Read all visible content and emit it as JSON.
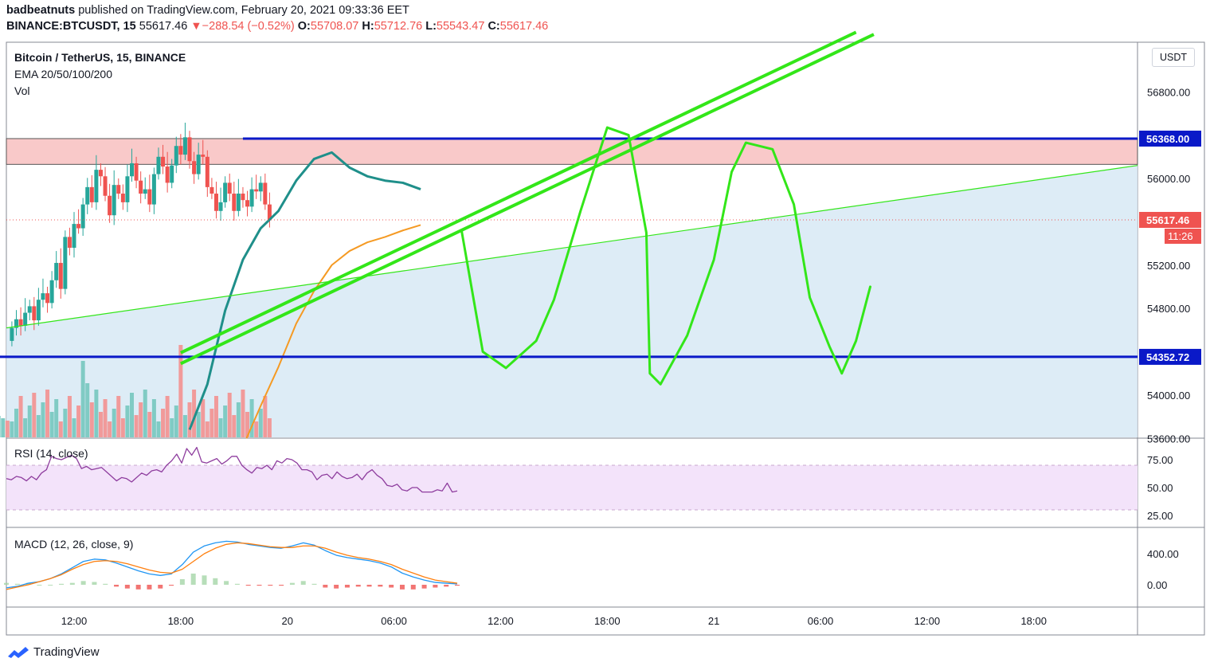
{
  "header": {
    "author": "badbeatnuts",
    "published_text": "published on TradingView.com, February 20, 2021 09:33:36 EET",
    "symbol": "BINANCE:BTCUSDT, 15",
    "last": "55617.46",
    "change_arrow": "▼",
    "change": "−288.54 (−0.52%)",
    "o_label": "O:",
    "o_value": "55708.07",
    "h_label": "H:",
    "h_value": "55712.76",
    "l_label": "L:",
    "l_value": "55543.47",
    "c_label": "C:",
    "c_value": "55617.46"
  },
  "legend": {
    "title": "Bitcoin / TetherUS, 15, BINANCE",
    "ema": "EMA 20/50/100/200",
    "vol": "Vol",
    "rsi": "RSI (14, close)",
    "macd": "MACD (12, 26, close, 9)"
  },
  "unit_badge": "USDT",
  "price_tags": {
    "resistance": "56368.00",
    "last": "55617.46",
    "countdown": "11:26",
    "support": "54352.72"
  },
  "footer": {
    "brand": "TradingView"
  },
  "colors": {
    "up": "#26a69a",
    "down": "#ef5350",
    "ema20": "#1f8f8a",
    "ema50": "#f59a23",
    "drawing": "#33e619",
    "level": "#0a19c8",
    "zone": "#f9c9c9",
    "projection": "#d7e9f5",
    "rsi": "#8e3d9e",
    "rsi_band": "#f3e3fa",
    "macd": "#2196f3",
    "signal": "#ff7f0e"
  },
  "chart_data": [
    {
      "type": "candlestick",
      "title": "Bitcoin / TetherUS, 15, BINANCE",
      "y_ticks": [
        "56800.00",
        "56000.00",
        "55200.00",
        "54800.00",
        "54000.00",
        "53600.00"
      ],
      "x_ticks": [
        "12:00",
        "18:00",
        "20",
        "06:00",
        "12:00",
        "18:00",
        "21",
        "06:00",
        "12:00",
        "18:00"
      ],
      "ylim": [
        53550,
        57100
      ],
      "time_range_hours": [
        -9,
        54
      ],
      "levels": [
        {
          "name": "resistance",
          "value": 56368.0
        },
        {
          "name": "support",
          "value": 54352.72
        },
        {
          "name": "last",
          "value": 55617.46
        }
      ],
      "resistance_zone": [
        56130,
        56368
      ],
      "candles": {
        "start_hour": 8.5,
        "interval_hours": 0.25,
        "close": [
          54620,
          54700,
          54640,
          54760,
          54820,
          54690,
          54880,
          54940,
          54850,
          55060,
          55220,
          54980,
          55460,
          55360,
          55580,
          55540,
          55760,
          55920,
          55780,
          56080,
          56020,
          55840,
          55660,
          55940,
          55860,
          55780,
          56020,
          56140,
          55980,
          55860,
          55900,
          55760,
          56040,
          56200,
          56110,
          55960,
          56120,
          56300,
          56220,
          56380,
          56160,
          56040,
          56220,
          56200,
          55920,
          55860,
          55700,
          55780,
          55960,
          55860,
          55700,
          55860,
          55800,
          55740,
          55900,
          55880,
          55960,
          55760,
          55617
        ],
        "high": 56720,
        "low": 54140
      },
      "ema20": [
        [
          18.5,
          53680
        ],
        [
          19.5,
          54100
        ],
        [
          20.5,
          54780
        ],
        [
          21.5,
          55250
        ],
        [
          22.5,
          55540
        ],
        [
          23.5,
          55700
        ],
        [
          24.5,
          55980
        ],
        [
          25.5,
          56180
        ],
        [
          26.5,
          56240
        ],
        [
          27.5,
          56100
        ],
        [
          28.5,
          56020
        ],
        [
          29.5,
          55980
        ],
        [
          30.5,
          55960
        ],
        [
          31.5,
          55900
        ]
      ],
      "ema50": [
        [
          21.7,
          53600
        ],
        [
          22.5,
          53900
        ],
        [
          23.5,
          54260
        ],
        [
          24.5,
          54660
        ],
        [
          25.5,
          54960
        ],
        [
          26.5,
          55200
        ],
        [
          27.5,
          55330
        ],
        [
          28.5,
          55410
        ],
        [
          29.5,
          55460
        ],
        [
          30.5,
          55520
        ],
        [
          31.5,
          55570
        ]
      ],
      "volume_label": "Vol"
    },
    {
      "type": "line",
      "title": "RSI (14, close)",
      "y_ticks": [
        "75.00",
        "50.00",
        "25.00"
      ],
      "ylim": [
        15,
        90
      ],
      "bands": [
        30,
        70
      ],
      "series": [
        {
          "name": "RSI",
          "values": [
            58,
            57,
            60,
            59,
            56,
            60,
            57,
            63,
            66,
            78,
            76,
            75,
            77,
            79,
            76,
            67,
            69,
            66,
            67,
            68,
            64,
            60,
            56,
            59,
            58,
            55,
            59,
            63,
            61,
            65,
            66,
            64,
            70,
            74,
            80,
            72,
            85,
            79,
            86,
            73,
            72,
            74,
            76,
            71,
            74,
            78,
            78,
            70,
            66,
            63,
            68,
            67,
            70,
            66,
            74,
            72,
            76,
            75,
            72,
            66,
            66,
            64,
            57,
            61,
            62,
            58,
            64,
            60,
            58,
            59,
            62,
            57,
            63,
            66,
            61,
            58,
            52,
            51,
            53,
            48,
            47,
            50,
            50,
            46,
            46,
            46,
            48,
            47,
            54,
            46,
            47
          ]
        }
      ]
    },
    {
      "type": "line",
      "title": "MACD (12, 26, close, 9)",
      "y_ticks": [
        "400.00",
        "0.00"
      ],
      "ylim": [
        -100,
        600
      ],
      "series": [
        {
          "name": "MACD",
          "values": [
            -40,
            -20,
            20,
            40,
            80,
            140,
            220,
            300,
            330,
            320,
            280,
            230,
            180,
            140,
            120,
            140,
            260,
            420,
            500,
            540,
            560,
            550,
            520,
            500,
            480,
            470,
            500,
            540,
            510,
            440,
            380,
            350,
            330,
            310,
            280,
            230,
            150,
            100,
            60,
            30,
            20,
            10
          ]
        },
        {
          "name": "Signal",
          "values": [
            -60,
            -30,
            0,
            40,
            80,
            130,
            200,
            260,
            300,
            310,
            300,
            270,
            230,
            190,
            160,
            150,
            200,
            300,
            400,
            470,
            520,
            540,
            530,
            510,
            490,
            480,
            480,
            500,
            500,
            470,
            420,
            380,
            350,
            330,
            300,
            260,
            200,
            150,
            100,
            60,
            40,
            20
          ]
        }
      ]
    }
  ]
}
